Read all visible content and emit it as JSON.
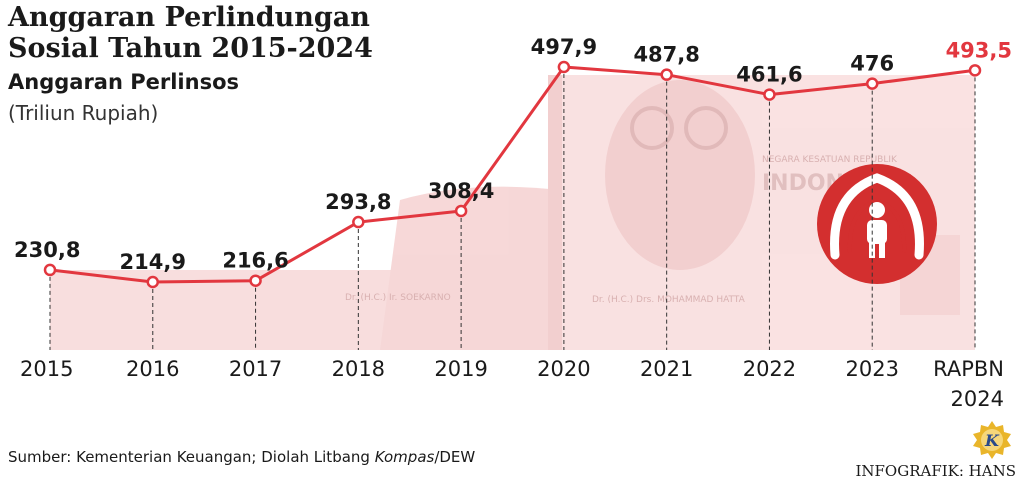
{
  "header": {
    "title": "Anggaran Perlindungan Sosial Tahun 2015-2024",
    "subtitle": "Anggaran Perlinsos",
    "unit": "(Triliun Rupiah)"
  },
  "footer": {
    "source_prefix": "Sumber: Kementerian Keuangan; Diolah Litbang ",
    "source_italic": "Kompas",
    "source_suffix": "/DEW",
    "credit": "INFOGRAFIK: HANS",
    "logo_letter": "K"
  },
  "colors": {
    "line": "#e2373f",
    "highlight_label": "#e2373f",
    "label": "#1a1a1a",
    "badge": "#d32f2f",
    "banknote": "#f3c3c3",
    "logo": "#e9b52a"
  },
  "background_text": {
    "signature_left": "Dr. (H.C.) Ir. SOEKARNO",
    "signature_right": "Dr. (H.C.) Drs. MOHAMMAD HATTA",
    "bank_name": "NEGARA KESATUAN REPUBLIK",
    "country": "INDONESIA"
  },
  "icons": {
    "badge": "protection-hands-icon",
    "logo": "kompas-logo-icon"
  },
  "chart_data": {
    "type": "line",
    "title": "Anggaran Perlindungan Sosial Tahun 2015-2024",
    "ylabel": "(Triliun Rupiah)",
    "categories": [
      "2015",
      "2016",
      "2017",
      "2018",
      "2019",
      "2020",
      "2021",
      "2022",
      "2023",
      "RAPBN 2024"
    ],
    "value_labels": [
      "230,8",
      "214,9",
      "216,6",
      "293,8",
      "308,4",
      "497,9",
      "487,8",
      "461,6",
      "476",
      "493,5"
    ],
    "series": [
      {
        "name": "Anggaran Perlinsos",
        "values": [
          230.8,
          214.9,
          216.6,
          293.8,
          308.4,
          497.9,
          487.8,
          461.6,
          476,
          493.5
        ]
      }
    ],
    "highlight_index": 9,
    "grid": false,
    "ylim": [
      180,
      520
    ]
  }
}
